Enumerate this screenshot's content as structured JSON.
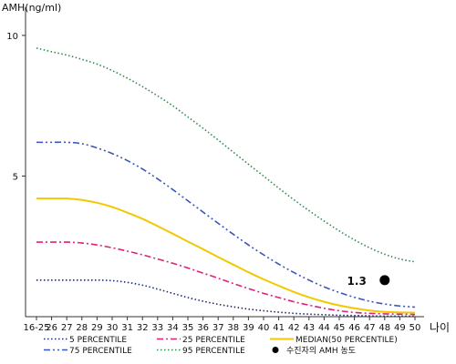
{
  "chart_data": {
    "type": "line",
    "ylabel": "AMH(ng/ml)",
    "xlabel": "나이",
    "categories": [
      "16-25",
      "26",
      "27",
      "28",
      "29",
      "30",
      "31",
      "32",
      "33",
      "34",
      "35",
      "36",
      "37",
      "38",
      "39",
      "40",
      "41",
      "42",
      "43",
      "44",
      "45",
      "46",
      "47",
      "48",
      "49",
      "50"
    ],
    "yticks": [
      5,
      10
    ],
    "ylim": [
      0,
      11
    ],
    "grid": false,
    "legend_position": "bottom",
    "series": [
      {
        "name": "5 PERCENTILE",
        "color": "#1a2a7a",
        "dash": "dotted",
        "values": [
          1.3,
          1.3,
          1.3,
          1.3,
          1.3,
          1.28,
          1.22,
          1.12,
          0.98,
          0.83,
          0.68,
          0.55,
          0.44,
          0.35,
          0.27,
          0.21,
          0.16,
          0.12,
          0.09,
          0.07,
          0.05,
          0.04,
          0.03,
          0.02,
          0.02,
          0.02
        ]
      },
      {
        "name": "25 PERCENTILE",
        "color": "#e0207a",
        "dash": "dashdot",
        "values": [
          2.65,
          2.65,
          2.65,
          2.62,
          2.55,
          2.45,
          2.33,
          2.2,
          2.05,
          1.9,
          1.73,
          1.55,
          1.37,
          1.18,
          1.0,
          0.83,
          0.68,
          0.53,
          0.41,
          0.3,
          0.21,
          0.15,
          0.12,
          0.1,
          0.09,
          0.08
        ]
      },
      {
        "name": "MEDIAN(50 PERCENTILE)",
        "color": "#f2c800",
        "dash": "solid",
        "values": [
          4.2,
          4.2,
          4.2,
          4.15,
          4.05,
          3.9,
          3.7,
          3.48,
          3.22,
          2.95,
          2.67,
          2.4,
          2.12,
          1.85,
          1.58,
          1.33,
          1.1,
          0.88,
          0.69,
          0.53,
          0.4,
          0.3,
          0.22,
          0.17,
          0.15,
          0.14
        ]
      },
      {
        "name": "75 PERCENTILE",
        "color": "#3a56b8",
        "dash": "dashdotdot",
        "values": [
          6.2,
          6.2,
          6.2,
          6.15,
          6.0,
          5.8,
          5.55,
          5.25,
          4.9,
          4.52,
          4.12,
          3.72,
          3.32,
          2.93,
          2.55,
          2.2,
          1.87,
          1.57,
          1.3,
          1.06,
          0.86,
          0.69,
          0.55,
          0.45,
          0.38,
          0.34
        ]
      },
      {
        "name": "95 PERCENTILE",
        "color": "#2e8a4e",
        "dash": "dotted",
        "values": [
          9.55,
          9.42,
          9.3,
          9.15,
          8.98,
          8.75,
          8.48,
          8.18,
          7.85,
          7.5,
          7.1,
          6.7,
          6.28,
          5.85,
          5.42,
          5.0,
          4.57,
          4.16,
          3.77,
          3.4,
          3.05,
          2.73,
          2.45,
          2.22,
          2.05,
          1.95
        ]
      }
    ],
    "marker": {
      "name": "수진자의 AMH 농도",
      "x": "48",
      "y": 1.3,
      "label": "1.3",
      "color": "#000000"
    }
  }
}
